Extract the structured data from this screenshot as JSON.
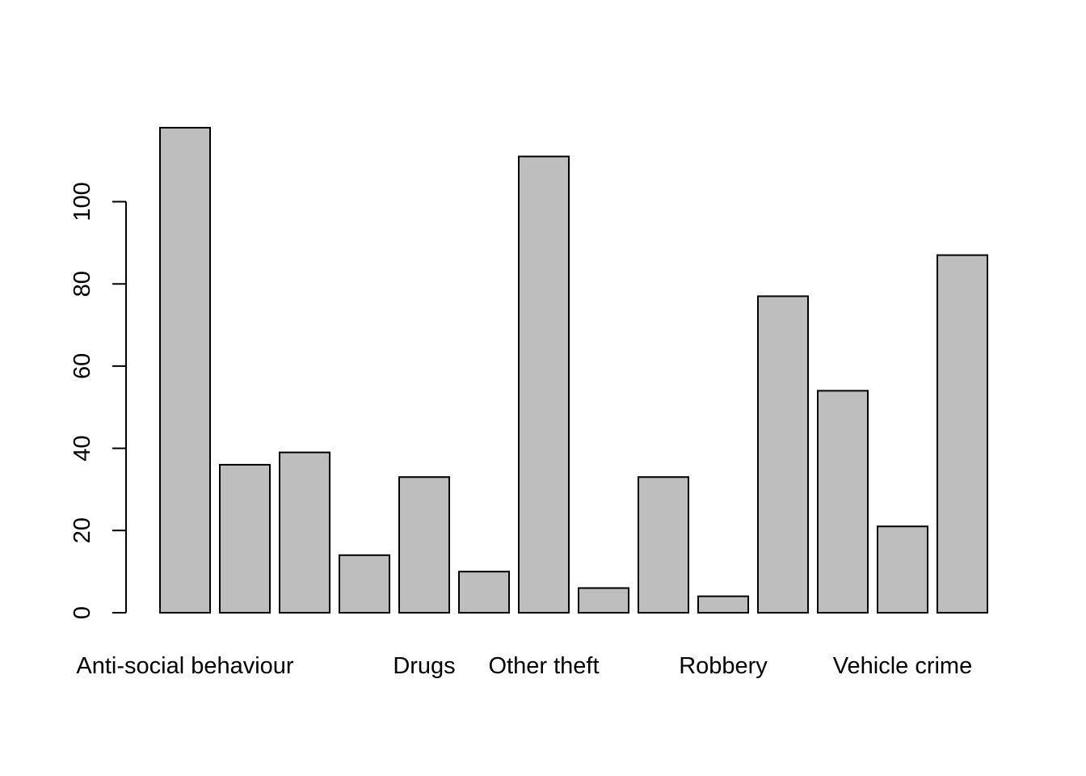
{
  "chart_data": {
    "type": "bar",
    "categories": [
      "Anti-social behaviour",
      "",
      "",
      "",
      "Drugs",
      "",
      "Other theft",
      "",
      "",
      "Robbery",
      "",
      "",
      "Vehicle crime",
      ""
    ],
    "values": [
      118,
      36,
      39,
      14,
      33,
      10,
      111,
      6,
      33,
      4,
      77,
      54,
      21,
      87
    ],
    "ylim": [
      0,
      118
    ],
    "yticks": [
      "0",
      "20",
      "40",
      "60",
      "80",
      "100"
    ],
    "colors": {
      "bar_fill": "#bebebe",
      "bar_stroke": "#000000"
    },
    "grid": false,
    "legend": "none"
  }
}
